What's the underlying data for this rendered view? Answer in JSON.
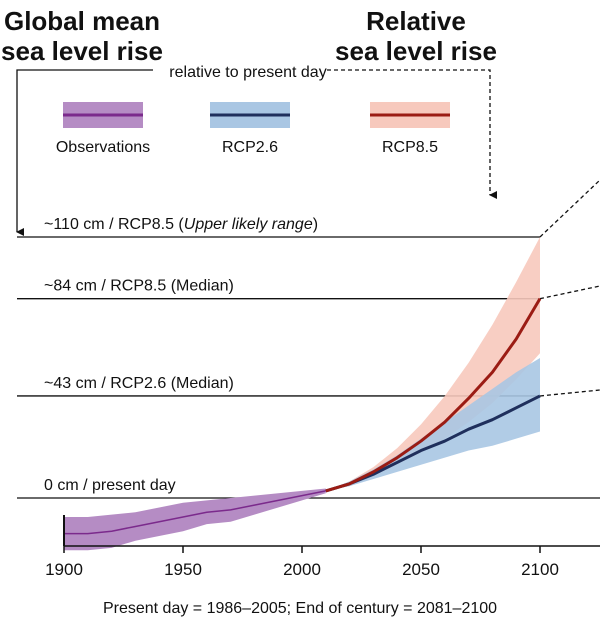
{
  "titles": {
    "left_line1": "Global mean",
    "left_line2": "sea level rise",
    "right_line1": "Relative",
    "right_line2": "sea level rise",
    "connector": "relative to present day"
  },
  "footer": "Present day = 1986–2005; End of century = 2081–2100",
  "chart_data": {
    "type": "area",
    "xlim": [
      1900,
      2125
    ],
    "xticks": [
      "1900",
      "1950",
      "2000",
      "2050",
      "2100"
    ],
    "ylim": [
      -20,
      110
    ],
    "ylabel": "",
    "xlabel": "",
    "grid": false,
    "legend": {
      "placement": "top",
      "entries": [
        {
          "name": "Observations",
          "line": "#7b2a8c",
          "band": "#b58cc4"
        },
        {
          "name": "RCP2.6",
          "line": "#1f2f5c",
          "band": "#a9c6e3"
        },
        {
          "name": "RCP8.5",
          "line": "#9b1c14",
          "band": "#f7c9bd"
        }
      ]
    },
    "reference_lines": [
      {
        "value": 110,
        "label_pre": "~110 cm / RCP8.5 (",
        "label_italic": "Upper likely range",
        "label_post": ")"
      },
      {
        "value": 84,
        "label_pre": "~84  cm / RCP8.5 (Median)",
        "label_italic": "",
        "label_post": ""
      },
      {
        "value": 43,
        "label_pre": "~43 cm / RCP2.6 (Median)",
        "label_italic": "",
        "label_post": ""
      },
      {
        "value": 0,
        "label_pre": "0 cm / present day",
        "label_italic": "",
        "label_post": ""
      }
    ],
    "series": [
      {
        "name": "Observations",
        "x": [
          1900,
          1910,
          1920,
          1930,
          1940,
          1950,
          1960,
          1970,
          1980,
          1990,
          2000,
          2010
        ],
        "median": [
          -15,
          -15,
          -14,
          -12,
          -10,
          -8,
          -6,
          -5,
          -3,
          -1,
          1,
          3
        ],
        "low": [
          -22,
          -22,
          -21,
          -18,
          -16,
          -14,
          -11,
          -10,
          -7,
          -4,
          -1,
          2
        ],
        "high": [
          -8,
          -8,
          -7,
          -6,
          -4,
          -2,
          -1,
          0,
          1,
          2,
          3,
          4
        ]
      },
      {
        "name": "RCP2.6",
        "x": [
          2010,
          2020,
          2030,
          2040,
          2050,
          2060,
          2070,
          2080,
          2090,
          2100
        ],
        "median": [
          3,
          6,
          10,
          15,
          20,
          24,
          29,
          33,
          38,
          43
        ],
        "low": [
          3,
          5,
          8,
          11,
          14,
          17,
          20,
          22,
          25,
          28
        ],
        "high": [
          3,
          7,
          12,
          18,
          25,
          32,
          39,
          46,
          53,
          59
        ]
      },
      {
        "name": "RCP8.5",
        "x": [
          2010,
          2020,
          2030,
          2040,
          2050,
          2060,
          2070,
          2080,
          2090,
          2100
        ],
        "median": [
          3,
          6,
          11,
          17,
          24,
          32,
          42,
          53,
          67,
          84
        ],
        "low": [
          3,
          5,
          9,
          14,
          19,
          25,
          32,
          40,
          50,
          61
        ],
        "high": [
          3,
          7,
          13,
          21,
          31,
          43,
          57,
          73,
          91,
          110
        ]
      }
    ]
  }
}
